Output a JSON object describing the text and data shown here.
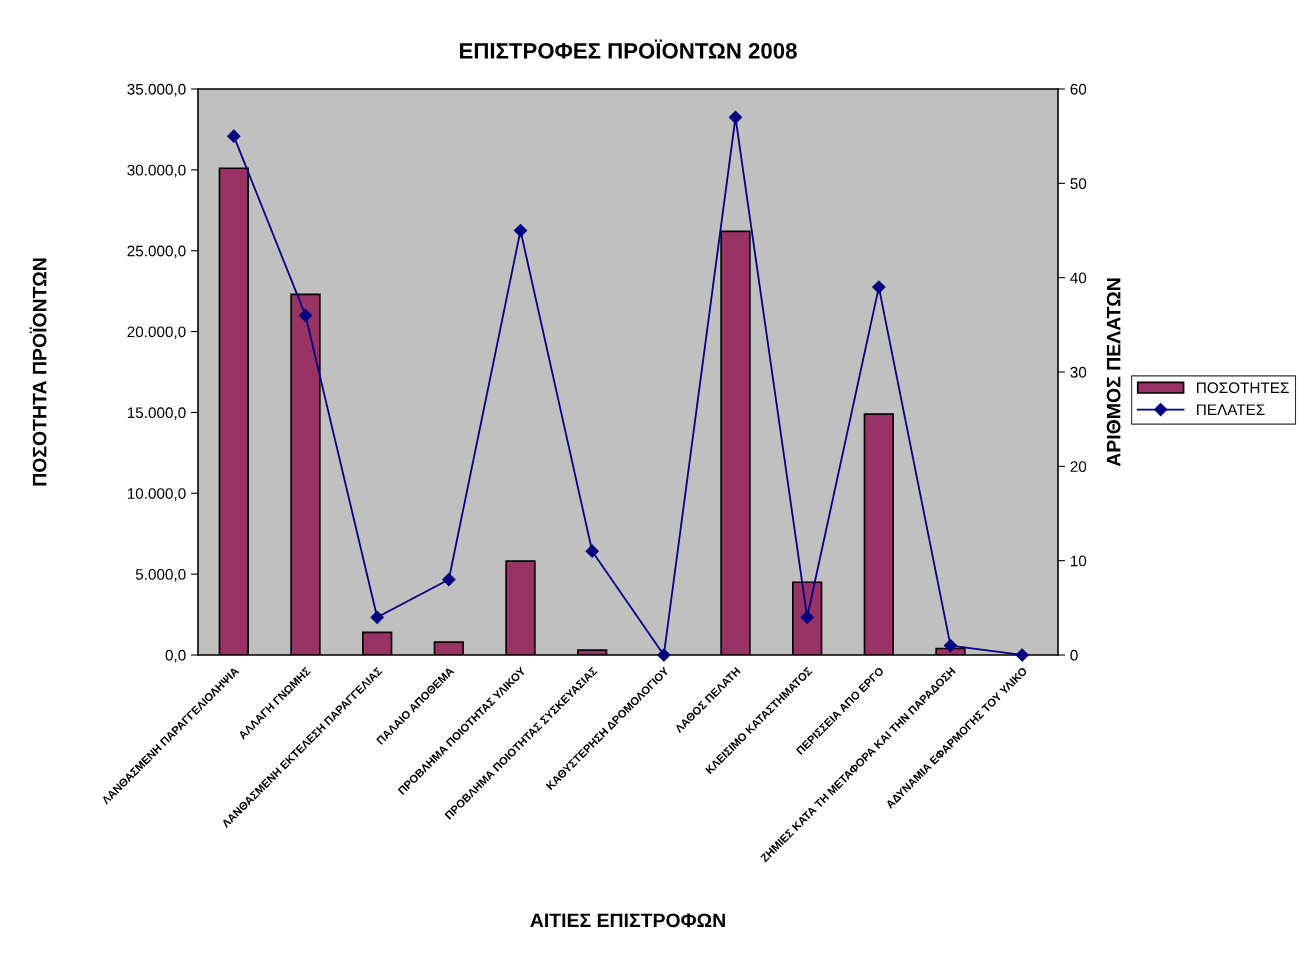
{
  "chart_data": {
    "type": "bar",
    "title": "ΕΠΙΣΤΡΟΦΕΣ ΠΡΟΪΟΝΤΩΝ 2008",
    "xlabel": "ΑΙΤΙΕΣ ΕΠΙΣΤΡΟΦΩΝ",
    "ylabel": "ΠΟΣΟΤΗΤΑ ΠΡΟΪΟΝΤΩΝ",
    "y2label": "ΑΡΙΘΜΟΣ ΠΕΛΑΤΩΝ",
    "categories": [
      "ΛΑΝΘΑΣΜΕΝΗ ΠΑΡΑΓΓΕΛΙΟΛΗΨΙΑ",
      "ΑΛΛΑΓΗ ΓΝΩΜΗΣ",
      "ΛΑΝΘΑΣΜΕΝΗ ΕΚΤΕΛΕΣΗ ΠΑΡΑΓΓΕΛΙΑΣ",
      "ΠΑΛΑΙΟ ΑΠΟΘΕΜΑ",
      "ΠΡΟΒΛΗΜΑ ΠΟΙΟΤΗΤΑΣ ΥΛΙΚΟΥ",
      "ΠΡΟΒΛΗΜΑ ΠΟΙΟΤΗΤΑΣ ΣΥΣΚΕΥΑΣΙΑΣ",
      "ΚΑΘΥΣΤΕΡΗΣΗ ΔΡΟΜΟΛΟΓΙΟΥ",
      "ΛΑΘΟΣ ΠΕΛΑΤΗ",
      "ΚΛΕΙΣΙΜΟ ΚΑΤΑΣΤΗΜΑΤΟΣ",
      "ΠΕΡΙΣΣΕΙΑ ΑΠΟ ΕΡΓΟ",
      "ΖΗΜΙΕΣ ΚΑΤΑ ΤΗ ΜΕΤΑΦΟΡΑ ΚΑΙ ΤΗΝ ΠΑΡΑΔΟΣΗ",
      "ΑΔΥΝΑΜΙΑ ΕΦΑΡΜΟΓΗΣ ΤΟΥ ΥΛΙΚΟ"
    ],
    "series": [
      {
        "name": "ΠΟΣΟΤΗΤΕΣ",
        "color": "#993366",
        "values": [
          30100,
          22300,
          1400,
          800,
          5800,
          300,
          null,
          26200,
          4500,
          14900,
          400,
          null
        ]
      },
      {
        "name": "ΠΕΛΑΤΕΣ",
        "type": "line",
        "axis": "y2",
        "color": "#000080",
        "marker": "diamond",
        "line_style": "solid",
        "values": [
          55,
          36,
          4,
          8,
          45,
          11,
          0,
          57,
          4,
          39,
          1,
          0
        ]
      }
    ],
    "ylim": [
      0,
      35000
    ],
    "yticks": [
      {
        "value": 0,
        "label": "0,0"
      },
      {
        "value": 5000,
        "label": "5.000,0"
      },
      {
        "value": 10000,
        "label": "10.000,0"
      },
      {
        "value": 15000,
        "label": "15.000,0"
      },
      {
        "value": 20000,
        "label": "20.000,0"
      },
      {
        "value": 25000,
        "label": "25.000,0"
      },
      {
        "value": 30000,
        "label": "30.000,0"
      },
      {
        "value": 35000,
        "label": "35.000,0"
      }
    ],
    "y2lim": [
      0,
      60
    ],
    "y2ticks": [
      0,
      10,
      20,
      30,
      40,
      50,
      60
    ],
    "legend": "right",
    "grid": false
  }
}
